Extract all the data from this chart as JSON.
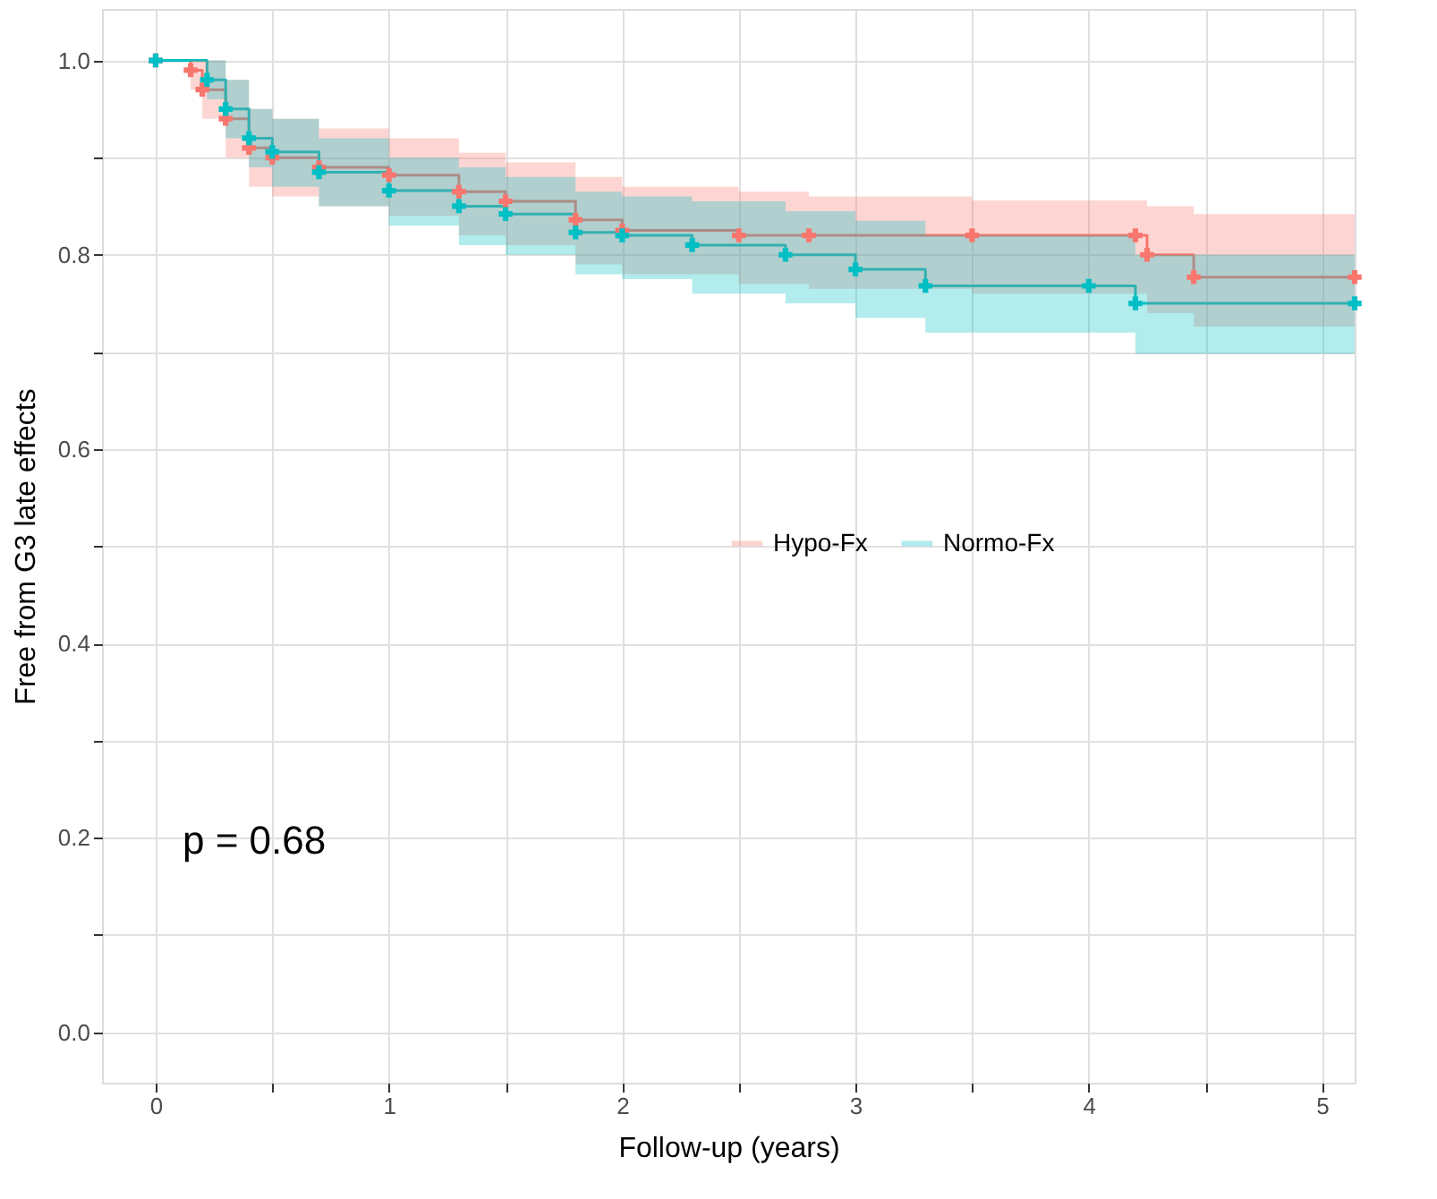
{
  "chart_data": {
    "type": "step",
    "xlabel": "Follow-up (years)",
    "ylabel": "Free from G3 late effects",
    "xlim": [
      -0.23,
      5.14
    ],
    "ylim": [
      -0.052,
      1.053
    ],
    "xticks": [
      0,
      {
        "value": 0.5,
        "label": null
      },
      1,
      {
        "value": 1.5,
        "label": null
      },
      2,
      {
        "value": 2.5,
        "label": null
      },
      3,
      {
        "value": 3.5,
        "label": null
      },
      4,
      {
        "value": 4.5,
        "label": null
      },
      5
    ],
    "yticks": [
      {
        "value": 0,
        "label": "0.0"
      },
      {
        "value": 0.1,
        "label": null
      },
      0.2,
      {
        "value": 0.3,
        "label": null
      },
      0.4,
      {
        "value": 0.5,
        "label": null
      },
      0.6,
      {
        "value": 0.7,
        "label": null
      },
      0.8,
      {
        "value": 0.9,
        "label": null
      },
      {
        "value": 1,
        "label": "1.0"
      }
    ],
    "grid": true,
    "legend": "right",
    "marker": "cross",
    "line_style": "solid",
    "annotations": [
      "p = 0.68"
    ],
    "series": [
      {
        "name": "Hypo-Fx",
        "color": "#f8766d",
        "x": [
          0,
          0.15,
          0.2,
          0.3,
          0.4,
          0.5,
          0.7,
          1.0,
          1.3,
          1.5,
          1.8,
          2.0,
          2.5,
          2.8,
          3.5,
          4.2,
          4.25,
          4.45,
          5.14
        ],
        "values": [
          1.0,
          0.99,
          0.97,
          0.94,
          0.91,
          0.9,
          0.89,
          0.882,
          0.865,
          0.855,
          0.836,
          0.825,
          0.82,
          0.82,
          0.82,
          0.82,
          0.8,
          0.777,
          0.777
        ],
        "lower": [
          1.0,
          0.97,
          0.94,
          0.9,
          0.87,
          0.86,
          0.85,
          0.84,
          0.82,
          0.81,
          0.79,
          0.78,
          0.77,
          0.765,
          0.76,
          0.76,
          0.74,
          0.726,
          0.726
        ],
        "upper": [
          1.0,
          1.0,
          1.0,
          0.98,
          0.95,
          0.94,
          0.93,
          0.92,
          0.905,
          0.895,
          0.88,
          0.87,
          0.865,
          0.86,
          0.856,
          0.856,
          0.85,
          0.842,
          0.842
        ]
      },
      {
        "name": "Normo-Fx",
        "color": "#00bfc4",
        "x": [
          0,
          0.22,
          0.3,
          0.4,
          0.5,
          0.7,
          1.0,
          1.3,
          1.5,
          1.8,
          2.0,
          2.3,
          2.7,
          3.0,
          3.3,
          4.0,
          4.2,
          5.14
        ],
        "values": [
          1.0,
          0.98,
          0.95,
          0.92,
          0.906,
          0.885,
          0.866,
          0.85,
          0.842,
          0.823,
          0.82,
          0.81,
          0.8,
          0.785,
          0.768,
          0.768,
          0.75,
          0.75
        ],
        "lower": [
          1.0,
          0.96,
          0.92,
          0.89,
          0.87,
          0.85,
          0.83,
          0.81,
          0.8,
          0.78,
          0.775,
          0.76,
          0.75,
          0.735,
          0.72,
          0.72,
          0.698,
          0.698
        ],
        "upper": [
          1.0,
          1.0,
          0.98,
          0.95,
          0.94,
          0.92,
          0.9,
          0.89,
          0.88,
          0.865,
          0.86,
          0.855,
          0.845,
          0.835,
          0.82,
          0.82,
          0.8,
          0.8
        ]
      }
    ]
  }
}
